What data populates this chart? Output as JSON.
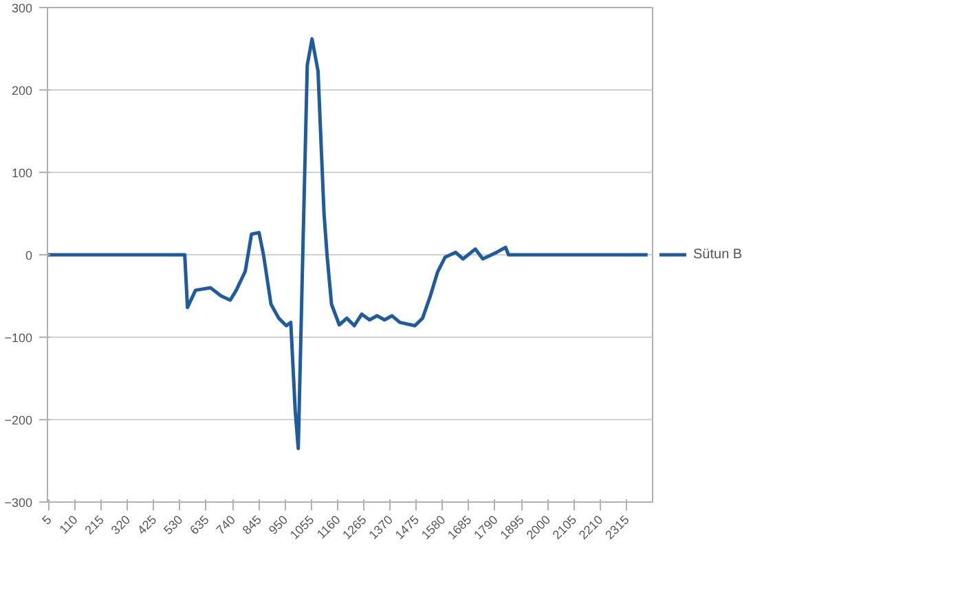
{
  "chart_data": {
    "type": "line",
    "xlim": [
      0,
      2420
    ],
    "ylim": [
      -300,
      300
    ],
    "yticks": [
      -300,
      -200,
      -100,
      0,
      100,
      200,
      300
    ],
    "xticks": [
      5,
      110,
      215,
      320,
      425,
      530,
      635,
      740,
      845,
      950,
      1055,
      1160,
      1265,
      1370,
      1475,
      1580,
      1685,
      1790,
      1895,
      2000,
      2105,
      2210,
      2315
    ],
    "grid": "y",
    "legend": "right",
    "series": [
      {
        "name": "Sütun B",
        "color": "#1f5c99",
        "x": [
          1,
          549,
          560,
          592,
          652,
          695,
          731,
          755,
          791,
          816,
          846,
          864,
          894,
          925,
          955,
          973,
          991,
          1003,
          1021,
          1039,
          1058,
          1082,
          1106,
          1118,
          1136,
          1167,
          1197,
          1227,
          1257,
          1288,
          1318,
          1348,
          1378,
          1409,
          1469,
          1500,
          1530,
          1560,
          1590,
          1632,
          1662,
          1711,
          1741,
          1796,
          1832,
          1844,
          2400
        ],
        "values": [
          0,
          0,
          -64,
          -43,
          -40,
          -50,
          -55,
          -43,
          -20,
          25,
          27,
          0,
          -60,
          -77,
          -86,
          -82,
          -190,
          -235,
          0,
          230,
          262,
          223,
          50,
          0,
          -60,
          -85,
          -77,
          -86,
          -72,
          -79,
          -74,
          -79,
          -74,
          -82,
          -86,
          -77,
          -51,
          -21,
          -3,
          3,
          -5,
          7,
          -5,
          3,
          9,
          0,
          0
        ]
      }
    ]
  }
}
